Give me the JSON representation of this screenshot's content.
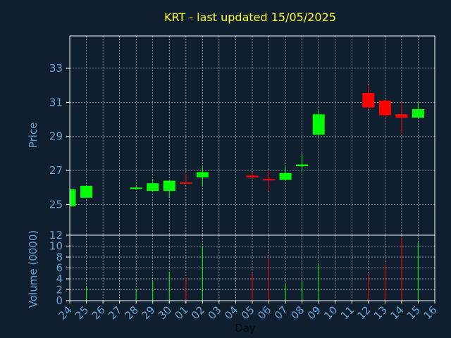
{
  "title": "KRT - last updated 15/05/2025",
  "colors": {
    "background": "#0f1f30",
    "frame": "#ffffff",
    "grid": "#ffffff",
    "title": "#ffff33",
    "tick_text": "#6aa3d0",
    "up": "#00ff00",
    "down": "#ff0000"
  },
  "chart_data": [
    {
      "type": "candlestick",
      "ylabel": "Price",
      "ylim": [
        23.2,
        34.9
      ],
      "yticks": [
        25,
        27,
        29,
        31,
        33
      ],
      "grid": true,
      "candles": [
        {
          "day": "24",
          "open": 24.9,
          "high": 25.9,
          "low": 24.9,
          "close": 25.9,
          "dir": "up"
        },
        {
          "day": "25",
          "open": 25.4,
          "high": 26.1,
          "low": 25.4,
          "close": 26.1,
          "dir": "up"
        },
        {
          "day": "28",
          "open": 25.95,
          "high": 26.05,
          "low": 25.85,
          "close": 26.0,
          "dir": "up"
        },
        {
          "day": "29",
          "open": 25.8,
          "high": 26.5,
          "low": 25.8,
          "close": 26.25,
          "dir": "up"
        },
        {
          "day": "30",
          "open": 25.8,
          "high": 26.4,
          "low": 25.4,
          "close": 26.4,
          "dir": "up"
        },
        {
          "day": "01",
          "open": 26.3,
          "high": 26.8,
          "low": 26.2,
          "close": 26.25,
          "dir": "down"
        },
        {
          "day": "02",
          "open": 26.6,
          "high": 27.2,
          "low": 26.1,
          "close": 26.9,
          "dir": "up"
        },
        {
          "day": "05",
          "open": 26.7,
          "high": 26.9,
          "low": 26.5,
          "close": 26.6,
          "dir": "down"
        },
        {
          "day": "06",
          "open": 26.5,
          "high": 27.0,
          "low": 25.8,
          "close": 26.45,
          "dir": "down"
        },
        {
          "day": "07",
          "open": 26.45,
          "high": 27.2,
          "low": 26.45,
          "close": 26.85,
          "dir": "up"
        },
        {
          "day": "08",
          "open": 27.25,
          "high": 27.9,
          "low": 27.0,
          "close": 27.35,
          "dir": "up"
        },
        {
          "day": "09",
          "open": 29.1,
          "high": 30.5,
          "low": 29.1,
          "close": 30.3,
          "dir": "up"
        },
        {
          "day": "12",
          "open": 31.55,
          "high": 32.0,
          "low": 30.6,
          "close": 30.7,
          "dir": "down"
        },
        {
          "day": "13",
          "open": 31.1,
          "high": 31.1,
          "low": 30.1,
          "close": 30.25,
          "dir": "down"
        },
        {
          "day": "14",
          "open": 30.3,
          "high": 31.0,
          "low": 29.2,
          "close": 30.1,
          "dir": "down"
        },
        {
          "day": "15",
          "open": 30.1,
          "high": 31.0,
          "low": 30.1,
          "close": 30.6,
          "dir": "up"
        }
      ]
    },
    {
      "type": "bar",
      "ylabel": "Volume (0000)",
      "ylim": [
        0,
        12
      ],
      "yticks": [
        0,
        2,
        4,
        6,
        8,
        10,
        12
      ],
      "grid": true,
      "bars": [
        {
          "day": "25",
          "value": 2.6,
          "dir": "up"
        },
        {
          "day": "28",
          "value": 2.2,
          "dir": "up"
        },
        {
          "day": "29",
          "value": 3.7,
          "dir": "up"
        },
        {
          "day": "30",
          "value": 5.3,
          "dir": "up"
        },
        {
          "day": "01",
          "value": 4.3,
          "dir": "down"
        },
        {
          "day": "02",
          "value": 10.0,
          "dir": "up"
        },
        {
          "day": "05",
          "value": 5.1,
          "dir": "down"
        },
        {
          "day": "06",
          "value": 7.8,
          "dir": "down"
        },
        {
          "day": "07",
          "value": 3.0,
          "dir": "up"
        },
        {
          "day": "08",
          "value": 3.6,
          "dir": "up"
        },
        {
          "day": "09",
          "value": 6.8,
          "dir": "up"
        },
        {
          "day": "12",
          "value": 4.6,
          "dir": "down"
        },
        {
          "day": "13",
          "value": 6.8,
          "dir": "down"
        },
        {
          "day": "14",
          "value": 11.5,
          "dir": "down"
        },
        {
          "day": "15",
          "value": 10.7,
          "dir": "up"
        }
      ]
    }
  ],
  "x_axis": {
    "label": "Day",
    "ticks": [
      "24",
      "25",
      "26",
      "27",
      "28",
      "29",
      "30",
      "01",
      "02",
      "03",
      "04",
      "05",
      "06",
      "07",
      "08",
      "09",
      "10",
      "11",
      "12",
      "13",
      "14",
      "15",
      "16"
    ]
  }
}
